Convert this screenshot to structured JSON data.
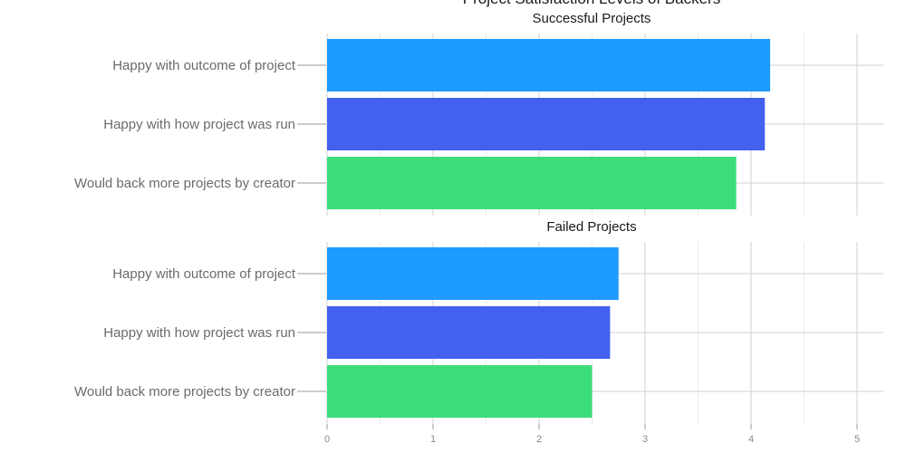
{
  "chart_data": {
    "type": "bar",
    "orientation": "horizontal",
    "title": "Project Satisfaction Levels of Backers",
    "categories": [
      "Happy with outcome of project",
      "Happy with how project was run",
      "Would back more projects by creator"
    ],
    "category_colors": [
      "#1e9bff",
      "#4361ee",
      "#3ddc7b"
    ],
    "panels": [
      {
        "title": "Successful Projects",
        "values": [
          4.18,
          4.13,
          3.86
        ]
      },
      {
        "title": "Failed Projects",
        "values": [
          2.75,
          2.67,
          2.5
        ]
      }
    ],
    "xlim": [
      0,
      5.25
    ],
    "xticks": [
      0,
      1,
      2,
      3,
      4,
      5
    ],
    "grid": true,
    "legend": "none"
  }
}
